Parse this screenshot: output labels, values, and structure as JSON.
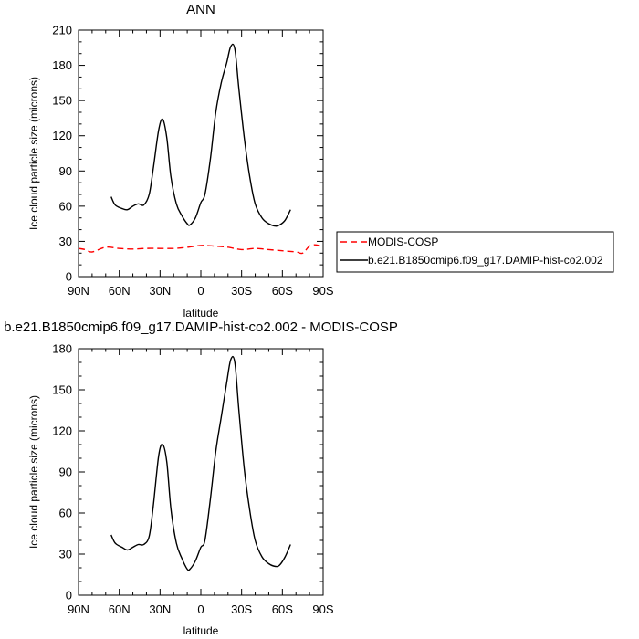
{
  "chart_data": [
    {
      "type": "line",
      "title": "ANN",
      "xlabel": "latitude",
      "ylabel": "Ice cloud particle size (microns)",
      "xlim": [
        90,
        -90
      ],
      "ylim": [
        0,
        210
      ],
      "x_ticks": [
        90,
        60,
        30,
        0,
        -30,
        -60,
        -90
      ],
      "x_tick_labels": [
        "90N",
        "60N",
        "30N",
        "0",
        "30S",
        "60S",
        "90S"
      ],
      "y_ticks": [
        0,
        30,
        60,
        90,
        120,
        150,
        180,
        210
      ],
      "y_tick_labels": [
        "0",
        "30",
        "60",
        "90",
        "120",
        "150",
        "180",
        "210"
      ],
      "legend_placement": "right",
      "series": [
        {
          "name": "MODIS-COSP",
          "color": "#ff0000",
          "dash": "dashed",
          "x": [
            90,
            85,
            80,
            70,
            60,
            50,
            40,
            30,
            20,
            10,
            0,
            -10,
            -20,
            -30,
            -40,
            -50,
            -60,
            -70,
            -75,
            -80,
            -85,
            -90
          ],
          "y": [
            24,
            23,
            21,
            25,
            24,
            23.5,
            24,
            24,
            24,
            25,
            26.5,
            26,
            25,
            23,
            24,
            23,
            22,
            21,
            20,
            26,
            27,
            25
          ]
        },
        {
          "name": "b.e21.B1850cmip6.f09_g17.DAMIP-hist-co2.002",
          "color": "#000000",
          "dash": "solid",
          "x": [
            66,
            63,
            58,
            54,
            50,
            46,
            42,
            38,
            35,
            31,
            28,
            25,
            22,
            18,
            14,
            10,
            8,
            4,
            0,
            -3,
            -7,
            -11,
            -15,
            -19,
            -22,
            -25,
            -28,
            -32,
            -36,
            -40,
            -45,
            -50,
            -55,
            -58,
            -62,
            -66
          ],
          "y": [
            68,
            61,
            58,
            57,
            60,
            62,
            61,
            70,
            92,
            125,
            134,
            118,
            85,
            62,
            52,
            45,
            44,
            50,
            63,
            70,
            100,
            140,
            165,
            182,
            196,
            194,
            160,
            118,
            85,
            62,
            50,
            45,
            43,
            44,
            48,
            57
          ]
        }
      ]
    },
    {
      "type": "line",
      "title": "b.e21.B1850cmip6.f09_g17.DAMIP-hist-co2.002 - MODIS-COSP",
      "xlabel": "latitude",
      "ylabel": "Ice cloud particle size (microns)",
      "xlim": [
        90,
        -90
      ],
      "ylim": [
        0,
        180
      ],
      "x_ticks": [
        90,
        60,
        30,
        0,
        -30,
        -60,
        -90
      ],
      "x_tick_labels": [
        "90N",
        "60N",
        "30N",
        "0",
        "30S",
        "60S",
        "90S"
      ],
      "y_ticks": [
        0,
        30,
        60,
        90,
        120,
        150,
        180
      ],
      "y_tick_labels": [
        "0",
        "30",
        "60",
        "90",
        "120",
        "150",
        "180"
      ],
      "series": [
        {
          "color": "#000000",
          "dash": "solid",
          "x": [
            66,
            63,
            58,
            54,
            50,
            46,
            42,
            38,
            35,
            31,
            28,
            25,
            22,
            18,
            14,
            10,
            8,
            4,
            0,
            -3,
            -7,
            -11,
            -15,
            -19,
            -22,
            -25,
            -28,
            -32,
            -36,
            -40,
            -45,
            -50,
            -55,
            -58,
            -62,
            -66
          ],
          "y": [
            44,
            38,
            35,
            33,
            35,
            37,
            37,
            43,
            65,
            102,
            110,
            97,
            63,
            38,
            27,
            19,
            19,
            25,
            35,
            40,
            70,
            105,
            130,
            155,
            172,
            170,
            135,
            92,
            62,
            40,
            28,
            23,
            21,
            22,
            28,
            37
          ]
        }
      ]
    }
  ]
}
